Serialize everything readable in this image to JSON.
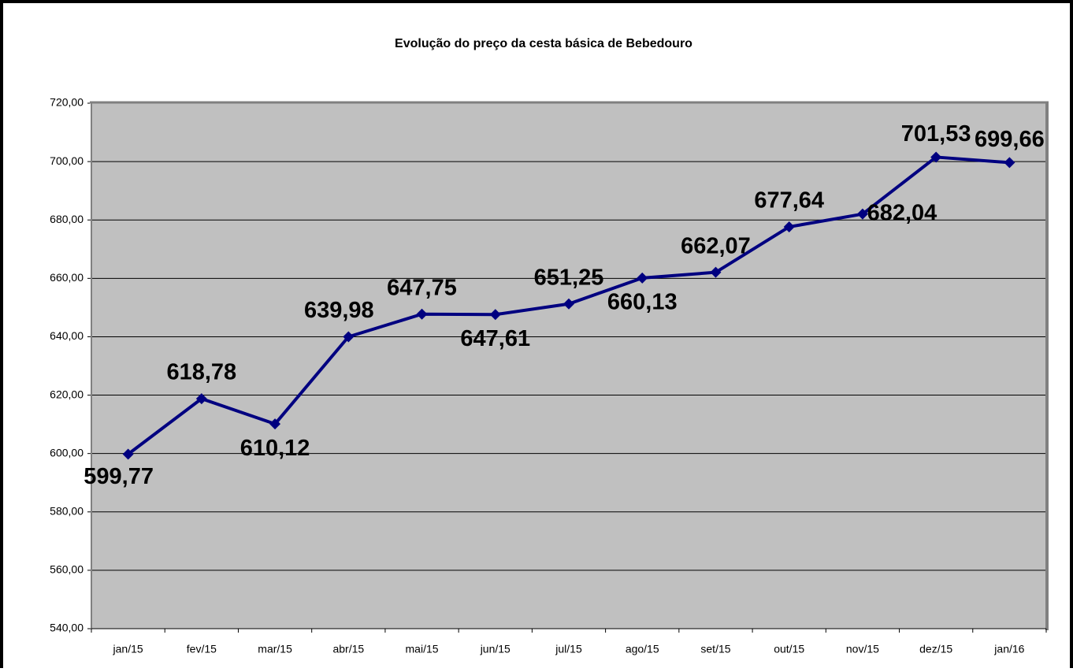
{
  "chart_data": {
    "type": "line",
    "title": "Evolução do preço da cesta básica de Bebedouro",
    "categories": [
      "jan/15",
      "fev/15",
      "mar/15",
      "abr/15",
      "mai/15",
      "jun/15",
      "jul/15",
      "ago/15",
      "set/15",
      "out/15",
      "nov/15",
      "dez/15",
      "jan/16"
    ],
    "values": [
      599.77,
      618.78,
      610.12,
      639.98,
      647.75,
      647.61,
      651.25,
      660.13,
      662.07,
      677.64,
      682.04,
      701.53,
      699.66
    ],
    "value_labels": [
      "599,77",
      "618,78",
      "610,12",
      "639,98",
      "647,75",
      "647,61",
      "651,25",
      "660,13",
      "662,07",
      "677,64",
      "682,04",
      "701,53",
      "699,66"
    ],
    "color": "#000080",
    "ylim": [
      540,
      720
    ],
    "yticks": [
      {
        "value": 540,
        "label": "540,00"
      },
      {
        "value": 560,
        "label": "560,00"
      },
      {
        "value": 580,
        "label": "580,00"
      },
      {
        "value": 600,
        "label": "600,00"
      },
      {
        "value": 620,
        "label": "620,00"
      },
      {
        "value": 640,
        "label": "640,00"
      },
      {
        "value": 660,
        "label": "660,00"
      },
      {
        "value": 680,
        "label": "680,00"
      },
      {
        "value": 700,
        "label": "700,00"
      },
      {
        "value": 720,
        "label": "720,00"
      }
    ],
    "grid": true
  }
}
